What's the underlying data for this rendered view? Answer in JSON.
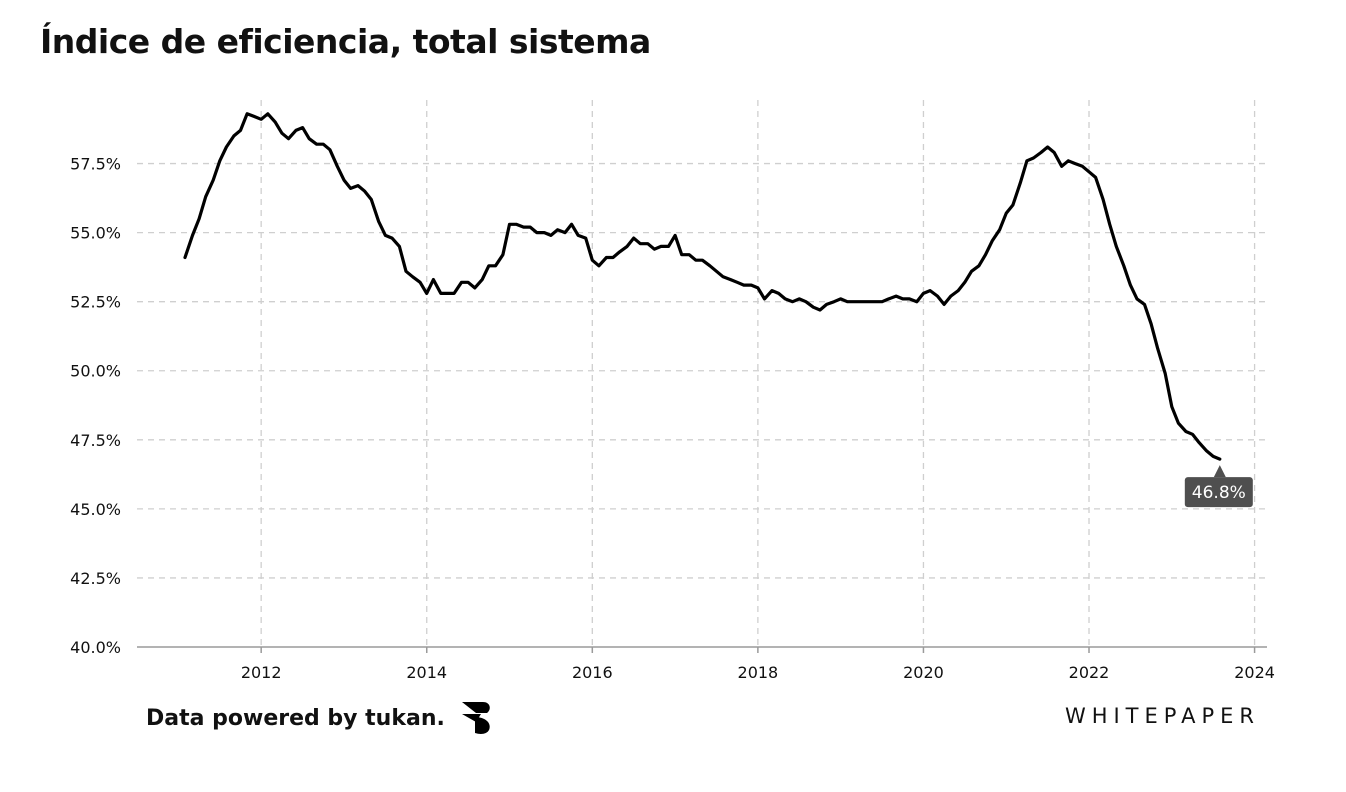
{
  "title": "Índice de eficiencia, total sistema",
  "footer": {
    "credit": "Data powered by tukan.",
    "logo_icon": "tukan-logo-icon",
    "brand": "WHITEPAPER"
  },
  "colors": {
    "line": "#000000",
    "grid": "#cfcfcf",
    "label_bg": "#4f4f4f",
    "label_text": "#ffffff"
  },
  "chart_data": {
    "type": "line",
    "title": "Índice de eficiencia, total sistema",
    "xlabel": "",
    "ylabel": "",
    "xlim": [
      2010.5,
      2024.15
    ],
    "ylim": [
      40.0,
      59.8
    ],
    "grid": true,
    "yticks": [
      40.0,
      42.5,
      45.0,
      47.5,
      50.0,
      52.5,
      55.0,
      57.5
    ],
    "ytick_labels": [
      "40.0%",
      "42.5%",
      "45.0%",
      "47.5%",
      "50.0%",
      "52.5%",
      "55.0%",
      "57.5%"
    ],
    "xticks": [
      2012,
      2014,
      2016,
      2018,
      2020,
      2022,
      2024
    ],
    "xtick_labels": [
      "2012",
      "2014",
      "2016",
      "2018",
      "2020",
      "2022",
      "2024"
    ],
    "last_value_label": "46.8%",
    "series": [
      {
        "x": [
          2011.08,
          2011.17,
          2011.25,
          2011.33,
          2011.42,
          2011.5,
          2011.58,
          2011.67,
          2011.75,
          2011.83,
          2011.92,
          2012.0,
          2012.08,
          2012.17,
          2012.25,
          2012.33,
          2012.42,
          2012.5,
          2012.58,
          2012.67,
          2012.75,
          2012.83,
          2012.92,
          2013.0,
          2013.08,
          2013.17,
          2013.25,
          2013.33,
          2013.42,
          2013.5,
          2013.58,
          2013.67,
          2013.75,
          2013.83,
          2013.92,
          2014.0,
          2014.08,
          2014.17,
          2014.25,
          2014.33,
          2014.42,
          2014.5,
          2014.58,
          2014.67,
          2014.75,
          2014.83,
          2014.92,
          2015.0,
          2015.08,
          2015.17,
          2015.25,
          2015.33,
          2015.42,
          2015.5,
          2015.58,
          2015.67,
          2015.75,
          2015.83,
          2015.92,
          2016.0,
          2016.08,
          2016.17,
          2016.25,
          2016.33,
          2016.42,
          2016.5,
          2016.58,
          2016.67,
          2016.75,
          2016.83,
          2016.92,
          2017.0,
          2017.08,
          2017.17,
          2017.25,
          2017.33,
          2017.42,
          2017.5,
          2017.58,
          2017.67,
          2017.75,
          2017.83,
          2017.92,
          2018.0,
          2018.08,
          2018.17,
          2018.25,
          2018.33,
          2018.42,
          2018.5,
          2018.58,
          2018.67,
          2018.75,
          2018.83,
          2018.92,
          2019.0,
          2019.08,
          2019.17,
          2019.25,
          2019.33,
          2019.42,
          2019.5,
          2019.58,
          2019.67,
          2019.75,
          2019.83,
          2019.92,
          2020.0,
          2020.08,
          2020.17,
          2020.25,
          2020.33,
          2020.42,
          2020.5,
          2020.58,
          2020.67,
          2020.75,
          2020.83,
          2020.92,
          2021.0,
          2021.08,
          2021.17,
          2021.25,
          2021.33,
          2021.42,
          2021.5,
          2021.58,
          2021.67,
          2021.75,
          2021.83,
          2021.92,
          2022.0,
          2022.08,
          2022.17,
          2022.25,
          2022.33,
          2022.42,
          2022.5,
          2022.58,
          2022.67,
          2022.75,
          2022.83,
          2022.92,
          2023.0,
          2023.08,
          2023.17,
          2023.25,
          2023.33,
          2023.42,
          2023.5,
          2023.58
        ],
        "values": [
          54.1,
          54.9,
          55.5,
          56.3,
          56.9,
          57.6,
          58.1,
          58.5,
          58.7,
          59.3,
          59.2,
          59.1,
          59.3,
          59.0,
          58.6,
          58.4,
          58.7,
          58.8,
          58.4,
          58.2,
          58.2,
          58.0,
          57.4,
          56.9,
          56.6,
          56.7,
          56.5,
          56.2,
          55.4,
          54.9,
          54.8,
          54.5,
          53.6,
          53.4,
          53.2,
          52.8,
          53.3,
          52.8,
          52.8,
          52.8,
          53.2,
          53.2,
          53.0,
          53.3,
          53.8,
          53.8,
          54.2,
          55.3,
          55.3,
          55.2,
          55.2,
          55.0,
          55.0,
          54.9,
          55.1,
          55.0,
          55.3,
          54.9,
          54.8,
          54.0,
          53.8,
          54.1,
          54.1,
          54.3,
          54.5,
          54.8,
          54.6,
          54.6,
          54.4,
          54.5,
          54.5,
          54.9,
          54.2,
          54.2,
          54.0,
          54.0,
          53.8,
          53.6,
          53.4,
          53.3,
          53.2,
          53.1,
          53.1,
          53.0,
          52.6,
          52.9,
          52.8,
          52.6,
          52.5,
          52.6,
          52.5,
          52.3,
          52.2,
          52.4,
          52.5,
          52.6,
          52.5,
          52.5,
          52.5,
          52.5,
          52.5,
          52.5,
          52.6,
          52.7,
          52.6,
          52.6,
          52.5,
          52.8,
          52.9,
          52.7,
          52.4,
          52.7,
          52.9,
          53.2,
          53.6,
          53.8,
          54.2,
          54.7,
          55.1,
          55.7,
          56.0,
          56.8,
          57.6,
          57.7,
          57.9,
          58.1,
          57.9,
          57.4,
          57.6,
          57.5,
          57.4,
          57.2,
          57.0,
          56.2,
          55.3,
          54.5,
          53.8,
          53.1,
          52.6,
          52.4,
          51.7,
          50.8,
          49.9,
          48.7,
          48.1,
          47.8,
          47.7,
          47.4,
          47.1,
          46.9,
          46.8
        ]
      }
    ]
  }
}
